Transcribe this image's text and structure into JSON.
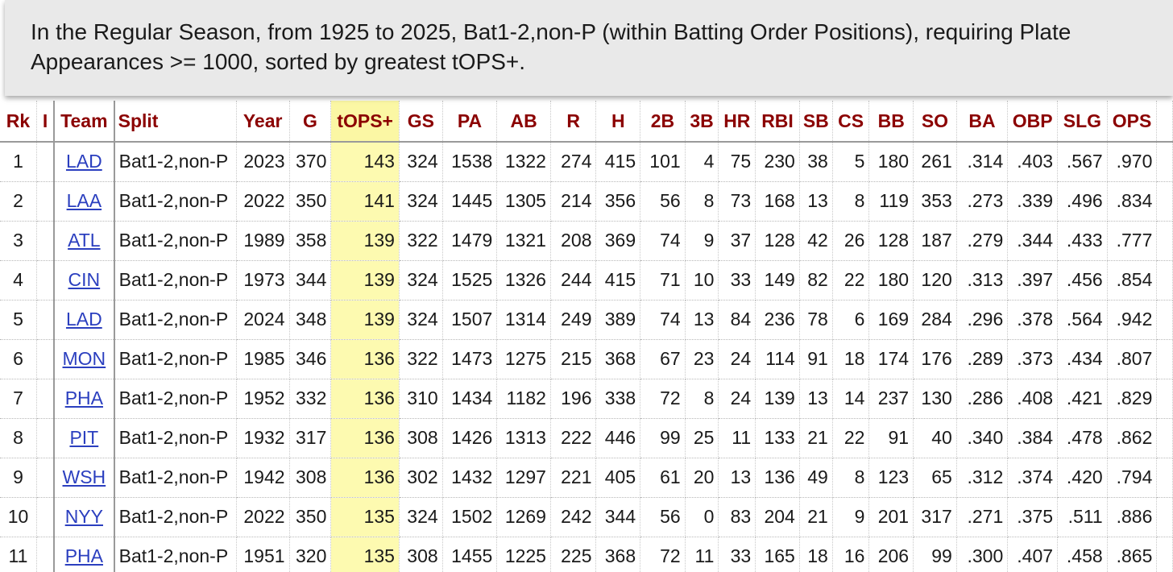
{
  "banner": {
    "text": "In the Regular Season, from 1925 to 2025, Bat1-2,non-P (within Batting Order Positions), requiring Plate Appearances >= 1000, sorted by greatest tOPS+."
  },
  "table": {
    "headers": [
      "Rk",
      "I",
      "Team",
      "Split",
      "Year",
      "G",
      "tOPS+",
      "GS",
      "PA",
      "AB",
      "R",
      "H",
      "2B",
      "3B",
      "HR",
      "RBI",
      "SB",
      "CS",
      "BB",
      "SO",
      "BA",
      "OBP",
      "SLG",
      "OPS"
    ],
    "rows": [
      [
        "1",
        "",
        "LAD",
        "Bat1-2,non-P",
        "2023",
        "370",
        "143",
        "324",
        "1538",
        "1322",
        "274",
        "415",
        "101",
        "4",
        "75",
        "230",
        "38",
        "5",
        "180",
        "261",
        ".314",
        ".403",
        ".567",
        ".970"
      ],
      [
        "2",
        "",
        "LAA",
        "Bat1-2,non-P",
        "2022",
        "350",
        "141",
        "324",
        "1445",
        "1305",
        "214",
        "356",
        "56",
        "8",
        "73",
        "168",
        "13",
        "8",
        "119",
        "353",
        ".273",
        ".339",
        ".496",
        ".834"
      ],
      [
        "3",
        "",
        "ATL",
        "Bat1-2,non-P",
        "1989",
        "358",
        "139",
        "322",
        "1479",
        "1321",
        "208",
        "369",
        "74",
        "9",
        "37",
        "128",
        "42",
        "26",
        "128",
        "187",
        ".279",
        ".344",
        ".433",
        ".777"
      ],
      [
        "4",
        "",
        "CIN",
        "Bat1-2,non-P",
        "1973",
        "344",
        "139",
        "324",
        "1525",
        "1326",
        "244",
        "415",
        "71",
        "10",
        "33",
        "149",
        "82",
        "22",
        "180",
        "120",
        ".313",
        ".397",
        ".456",
        ".854"
      ],
      [
        "5",
        "",
        "LAD",
        "Bat1-2,non-P",
        "2024",
        "348",
        "139",
        "324",
        "1507",
        "1314",
        "249",
        "389",
        "74",
        "13",
        "84",
        "236",
        "78",
        "6",
        "169",
        "284",
        ".296",
        ".378",
        ".564",
        ".942"
      ],
      [
        "6",
        "",
        "MON",
        "Bat1-2,non-P",
        "1985",
        "346",
        "136",
        "322",
        "1473",
        "1275",
        "215",
        "368",
        "67",
        "23",
        "24",
        "114",
        "91",
        "18",
        "174",
        "176",
        ".289",
        ".373",
        ".434",
        ".807"
      ],
      [
        "7",
        "",
        "PHA",
        "Bat1-2,non-P",
        "1952",
        "332",
        "136",
        "310",
        "1434",
        "1182",
        "196",
        "338",
        "72",
        "8",
        "24",
        "139",
        "13",
        "14",
        "237",
        "130",
        ".286",
        ".408",
        ".421",
        ".829"
      ],
      [
        "8",
        "",
        "PIT",
        "Bat1-2,non-P",
        "1932",
        "317",
        "136",
        "308",
        "1426",
        "1313",
        "222",
        "446",
        "99",
        "25",
        "11",
        "133",
        "21",
        "22",
        "91",
        "40",
        ".340",
        ".384",
        ".478",
        ".862"
      ],
      [
        "9",
        "",
        "WSH",
        "Bat1-2,non-P",
        "1942",
        "308",
        "136",
        "302",
        "1432",
        "1297",
        "221",
        "405",
        "61",
        "20",
        "13",
        "136",
        "49",
        "8",
        "123",
        "65",
        ".312",
        ".374",
        ".420",
        ".794"
      ],
      [
        "10",
        "",
        "NYY",
        "Bat1-2,non-P",
        "2022",
        "350",
        "135",
        "324",
        "1502",
        "1269",
        "242",
        "344",
        "56",
        "0",
        "83",
        "204",
        "21",
        "9",
        "201",
        "317",
        ".271",
        ".375",
        ".511",
        ".886"
      ],
      [
        "11",
        "",
        "PHA",
        "Bat1-2,non-P",
        "1951",
        "320",
        "135",
        "308",
        "1455",
        "1225",
        "225",
        "368",
        "72",
        "11",
        "33",
        "165",
        "18",
        "16",
        "206",
        "99",
        ".300",
        ".407",
        ".458",
        ".865"
      ]
    ]
  },
  "colors": {
    "header_text": "#8b0000",
    "sorted_column": "#fdfab0",
    "link": "#2b3fbf",
    "banner_bg": "#e9e9e9"
  }
}
